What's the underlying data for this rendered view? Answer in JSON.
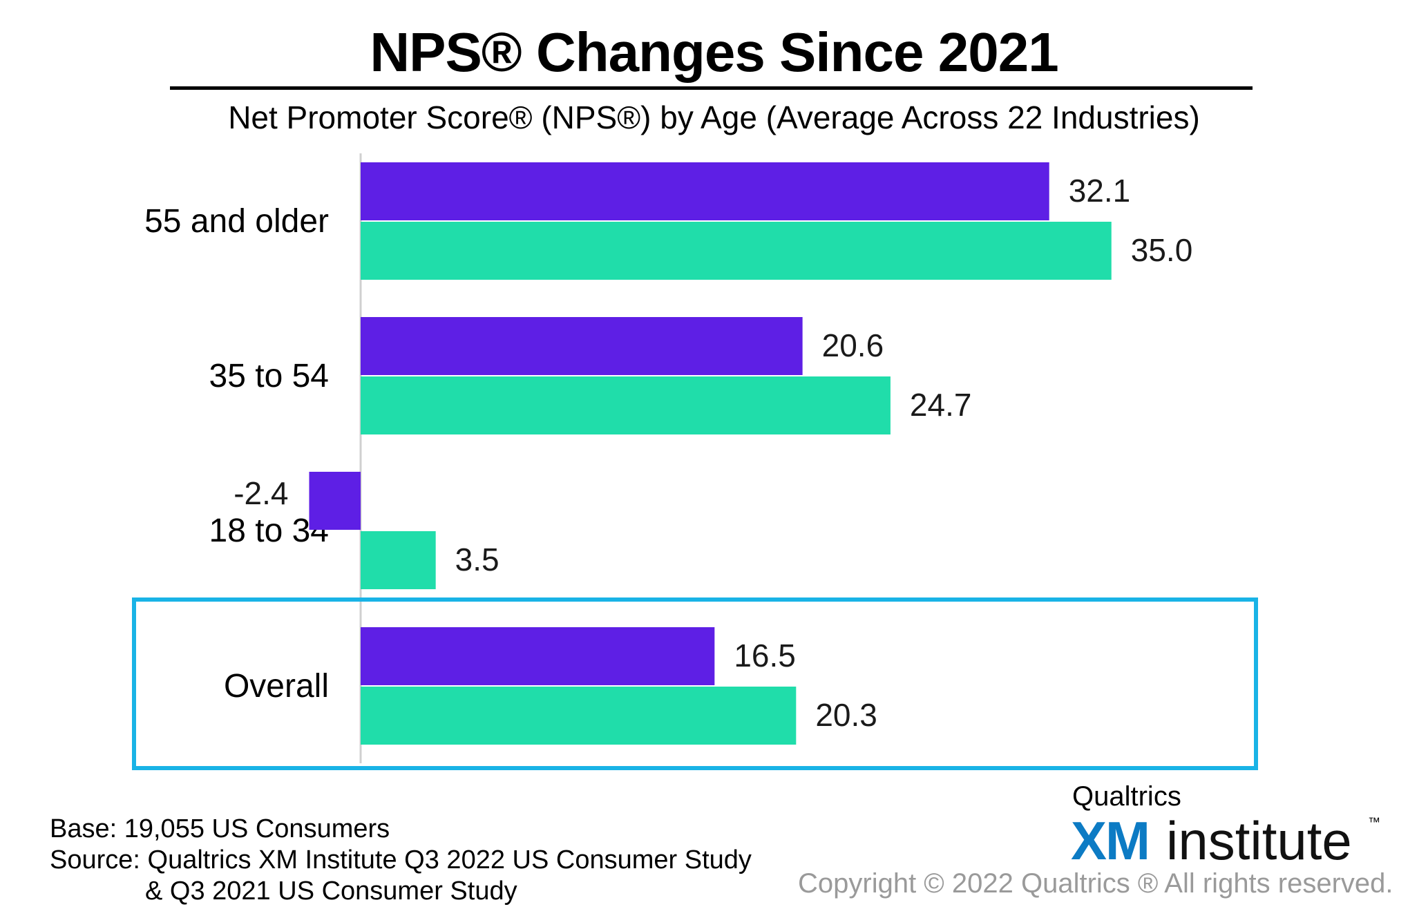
{
  "header": {
    "title": "NPS® Changes Since 2021",
    "subtitle": "Net Promoter Score® (NPS®) by Age (Average Across 22 Industries)"
  },
  "chart_data": {
    "type": "bar",
    "orientation": "horizontal",
    "categories": [
      "55 and older",
      "35 to 54",
      "18 to 34",
      "Overall"
    ],
    "series": [
      {
        "values": [
          32.1,
          20.6,
          -2.4,
          16.5
        ],
        "labels": [
          "32.1",
          "20.6",
          "-2.4",
          "16.5"
        ],
        "color": "#5e1fe5"
      },
      {
        "values": [
          35.0,
          24.7,
          3.5,
          20.3
        ],
        "labels": [
          "35.0",
          "24.7",
          "3.5",
          "20.3"
        ],
        "color": "#20ddaa"
      }
    ],
    "xlim": [
      -2.4,
      42
    ],
    "axis_color": "#d0d0d0",
    "highlighted_category": "Overall",
    "highlight_color": "#19b3e6",
    "grid": false,
    "legend": "none"
  },
  "footer": {
    "base": "Base: 19,055 US Consumers",
    "source_line1": "Source: Qualtrics XM Institute Q3 2022 US Consumer Study",
    "source_line2": "& Q3 2021 US Consumer Study",
    "copyright": "Copyright © 2022 Qualtrics ® All rights reserved."
  },
  "logo": {
    "top_text": "Qualtrics",
    "xm_text": "XM",
    "institute_text": "institute",
    "tm_text": "™",
    "xm_color": "#0c7bc4"
  }
}
